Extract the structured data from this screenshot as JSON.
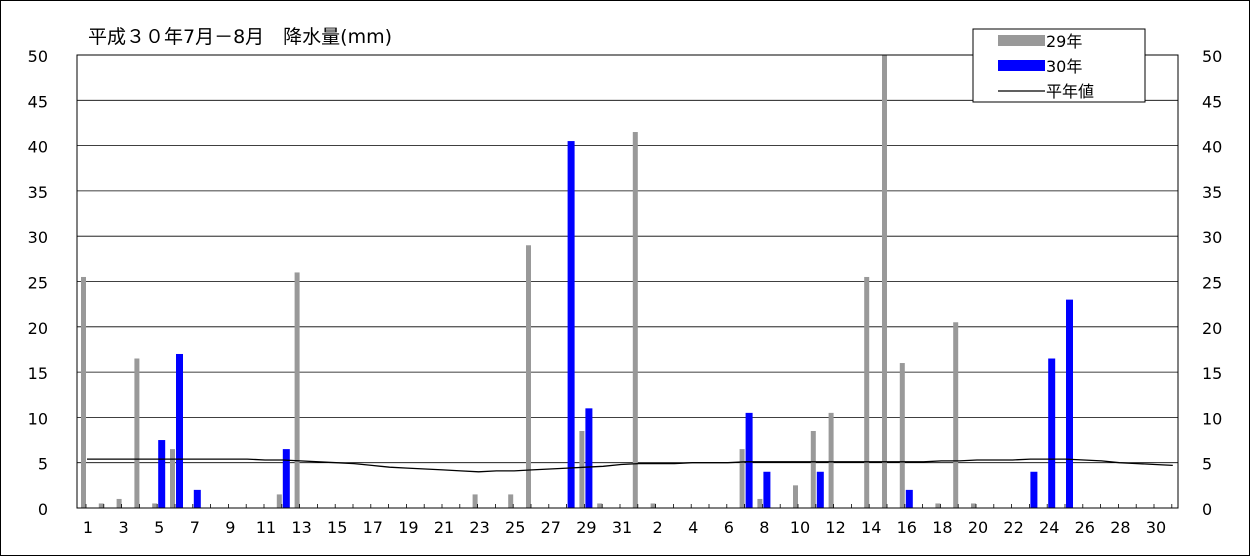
{
  "chart_data": {
    "type": "bar",
    "title": "平成３０年7月－8月　降水量(mm)",
    "ylim": [
      0,
      50
    ],
    "y_ticks": [
      0,
      5,
      10,
      15,
      20,
      25,
      30,
      35,
      40,
      45,
      50
    ],
    "x_tick_labels": [
      "1",
      "3",
      "5",
      "7",
      "9",
      "11",
      "13",
      "15",
      "17",
      "19",
      "21",
      "23",
      "25",
      "27",
      "29",
      "31",
      "2",
      "4",
      "6",
      "8",
      "10",
      "12",
      "14",
      "16",
      "18",
      "20",
      "22",
      "24",
      "26",
      "28",
      "30"
    ],
    "categories": [
      "7/1",
      "7/2",
      "7/3",
      "7/4",
      "7/5",
      "7/6",
      "7/7",
      "7/8",
      "7/9",
      "7/10",
      "7/11",
      "7/12",
      "7/13",
      "7/14",
      "7/15",
      "7/16",
      "7/17",
      "7/18",
      "7/19",
      "7/20",
      "7/21",
      "7/22",
      "7/23",
      "7/24",
      "7/25",
      "7/26",
      "7/27",
      "7/28",
      "7/29",
      "7/30",
      "7/31",
      "8/1",
      "8/2",
      "8/3",
      "8/4",
      "8/5",
      "8/6",
      "8/7",
      "8/8",
      "8/9",
      "8/10",
      "8/11",
      "8/12",
      "8/13",
      "8/14",
      "8/15",
      "8/16",
      "8/17",
      "8/18",
      "8/19",
      "8/20",
      "8/21",
      "8/22",
      "8/23",
      "8/24",
      "8/25",
      "8/26",
      "8/27",
      "8/28",
      "8/29",
      "8/30",
      "8/31"
    ],
    "series": [
      {
        "name": "29年",
        "color": "#999999",
        "values": [
          25.5,
          0.5,
          1.0,
          16.5,
          0.5,
          6.5,
          0,
          0,
          0,
          0,
          0,
          1.5,
          26.0,
          0,
          0,
          0,
          0,
          0,
          0,
          0,
          0,
          0,
          1.5,
          0,
          1.5,
          29.0,
          0,
          0,
          8.5,
          0.5,
          0,
          41.5,
          0.5,
          0,
          0,
          0,
          0,
          6.5,
          1.0,
          0,
          2.5,
          8.5,
          10.5,
          0,
          25.5,
          50.0,
          16.0,
          0,
          0.5,
          20.5,
          0.5,
          0,
          0,
          0,
          0,
          0,
          0,
          0,
          0,
          0,
          0,
          0
        ]
      },
      {
        "name": "30年",
        "color": "#0000ff",
        "values": [
          0,
          0,
          0,
          0,
          7.5,
          17.0,
          2.0,
          0,
          0,
          0,
          0,
          6.5,
          0,
          0,
          0,
          0,
          0,
          0,
          0,
          0,
          0,
          0,
          0,
          0,
          0,
          0,
          0,
          40.5,
          11.0,
          0,
          0,
          0,
          0,
          0,
          0,
          0,
          0,
          10.5,
          4.0,
          0,
          0,
          4.0,
          0,
          0,
          0,
          0,
          2.0,
          0,
          0,
          0,
          0,
          0,
          0,
          4.0,
          16.5,
          23.0,
          0,
          0,
          0,
          0,
          0,
          0
        ]
      },
      {
        "name": "平年値",
        "type": "line",
        "color": "#000000",
        "values": [
          5.4,
          5.4,
          5.4,
          5.4,
          5.4,
          5.4,
          5.4,
          5.4,
          5.4,
          5.4,
          5.3,
          5.3,
          5.2,
          5.1,
          5.0,
          4.9,
          4.7,
          4.5,
          4.4,
          4.3,
          4.2,
          4.1,
          4.0,
          4.1,
          4.1,
          4.2,
          4.3,
          4.4,
          4.5,
          4.6,
          4.8,
          4.9,
          4.9,
          4.9,
          5.0,
          5.0,
          5.0,
          5.1,
          5.1,
          5.1,
          5.1,
          5.1,
          5.1,
          5.1,
          5.1,
          5.1,
          5.1,
          5.1,
          5.2,
          5.2,
          5.3,
          5.3,
          5.3,
          5.4,
          5.4,
          5.4,
          5.3,
          5.2,
          5.0,
          4.9,
          4.8,
          4.7
        ]
      }
    ],
    "legend": {
      "position": "top-right",
      "entries": [
        "29年",
        "30年",
        "平年値"
      ]
    },
    "grid": true,
    "right_axis": true
  }
}
